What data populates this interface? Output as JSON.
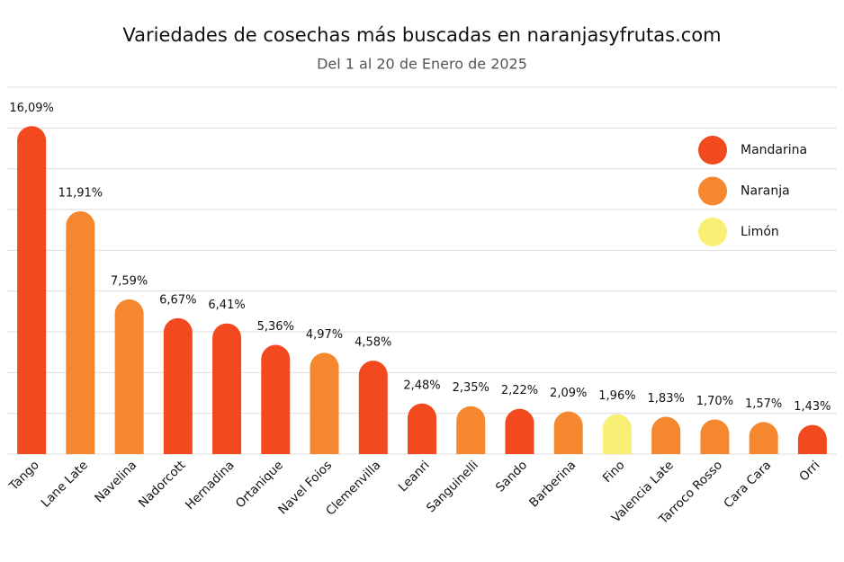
{
  "chart_data": {
    "type": "bar",
    "title": "Variedades de cosechas más buscadas en naranjasyfrutas.com",
    "subtitle": "Del 1 al 20 de Enero de 2025",
    "categories": [
      "Tango",
      "Lane Late",
      "Navelina",
      "Nadorcott",
      "Hernadina",
      "Ortanique",
      "Navel Foios",
      "Clemenvilla",
      "Leanri",
      "Sanguinelli",
      "Sando",
      "Barberina",
      "Fino",
      "Valencia Late",
      "Tarroco Rosso",
      "Cara Cara",
      "Orri"
    ],
    "series": [
      {
        "name": "Mandarina",
        "color": "#f2491f",
        "values": [
          16.09,
          null,
          null,
          6.67,
          6.41,
          5.36,
          null,
          4.58,
          2.48,
          null,
          2.22,
          null,
          null,
          null,
          null,
          null,
          1.43
        ],
        "value_labels": [
          "16,09%",
          null,
          null,
          "6,67%",
          "6,41%",
          "5,36%",
          null,
          "4,58%",
          "2,48%",
          null,
          "2,22%",
          null,
          null,
          null,
          null,
          null,
          "1,43%"
        ]
      },
      {
        "name": "Naranja",
        "color": "#f5882f",
        "values": [
          null,
          11.91,
          7.59,
          null,
          null,
          null,
          4.97,
          null,
          null,
          2.35,
          null,
          2.09,
          null,
          1.83,
          1.7,
          1.57,
          null
        ],
        "value_labels": [
          null,
          "11,91%",
          "7,59%",
          null,
          null,
          null,
          "4,97%",
          null,
          null,
          "2,35%",
          null,
          "2,09%",
          null,
          "1,83%",
          "1,70%",
          "1,57%",
          null
        ]
      },
      {
        "name": "Limón",
        "color": "#f9ef74",
        "values": [
          null,
          null,
          null,
          null,
          null,
          null,
          null,
          null,
          null,
          null,
          null,
          null,
          1.96,
          null,
          null,
          null,
          null
        ],
        "value_labels": [
          null,
          null,
          null,
          null,
          null,
          null,
          null,
          null,
          null,
          null,
          null,
          null,
          "1,96%",
          null,
          null,
          null,
          null
        ]
      }
    ],
    "ylim": [
      0,
      18
    ],
    "yticks": [
      0,
      2,
      4,
      6,
      8,
      10,
      12,
      14,
      16,
      18
    ],
    "grid": true,
    "legend": "top-right"
  }
}
